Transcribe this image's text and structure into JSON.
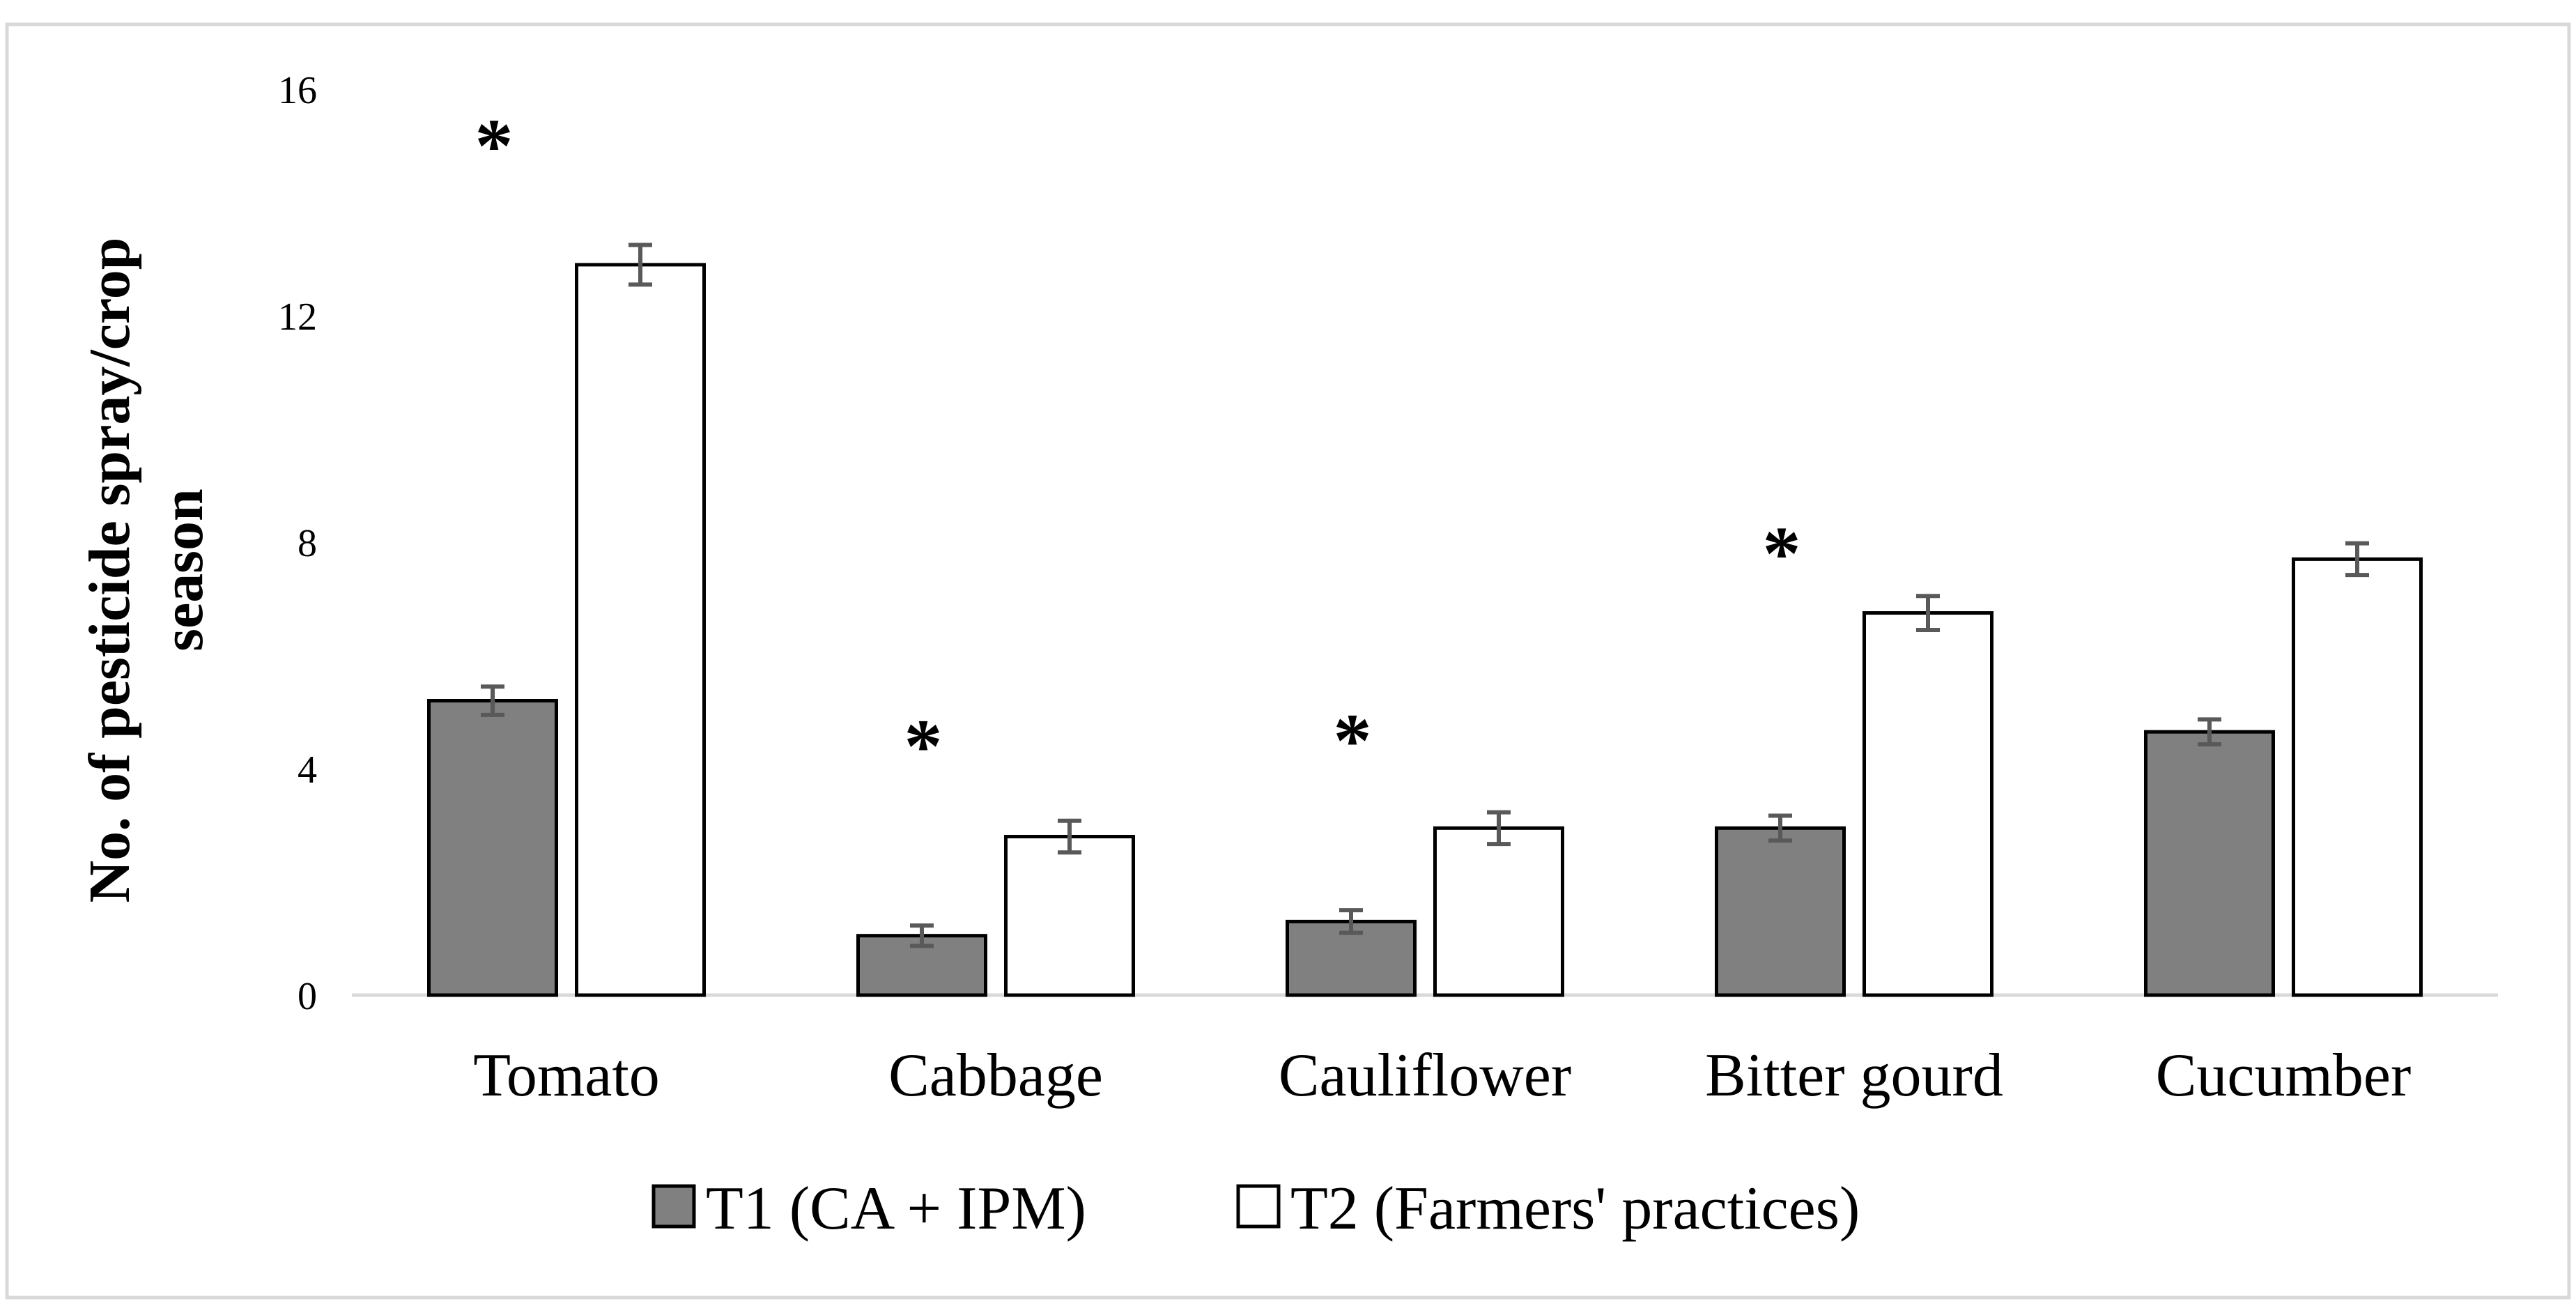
{
  "chart_data": {
    "type": "bar",
    "title": "",
    "ylabel": "No. of pesticide spray/crop season",
    "ylabel_lines": [
      "No. of pesticide spray/crop",
      "season"
    ],
    "xlabel": "",
    "ylim": [
      0,
      16
    ],
    "yticks": [
      0,
      4,
      8,
      12,
      16
    ],
    "ytick_labels": [
      "0",
      "4",
      "8",
      "12",
      "16"
    ],
    "grid": false,
    "legend_position": "bottom",
    "categories": [
      "Tomato",
      "Cabbage",
      "Cauliflower",
      "Bitter gourd",
      "Cucumber"
    ],
    "series": [
      {
        "name": "T1 (CA + IPM)",
        "color": "#808080",
        "values": [
          5.2,
          1.05,
          1.3,
          2.95,
          4.65
        ],
        "errors": [
          0.25,
          0.18,
          0.2,
          0.22,
          0.22
        ]
      },
      {
        "name": "T2 (Farmers' practices)",
        "color": "#ffffff",
        "values": [
          12.9,
          2.8,
          2.95,
          6.75,
          7.7
        ],
        "errors": [
          0.35,
          0.28,
          0.28,
          0.3,
          0.28
        ]
      }
    ],
    "significance": {
      "symbol": "*",
      "categories": [
        true,
        true,
        true,
        true,
        false
      ],
      "values": [
        15.1,
        4.5,
        4.6,
        7.9,
        null
      ]
    },
    "colors": {
      "frame": "#d9d9d9",
      "axis": "#d9d9d9",
      "errorbar": "#595959",
      "bar_edge": "#000000"
    }
  }
}
